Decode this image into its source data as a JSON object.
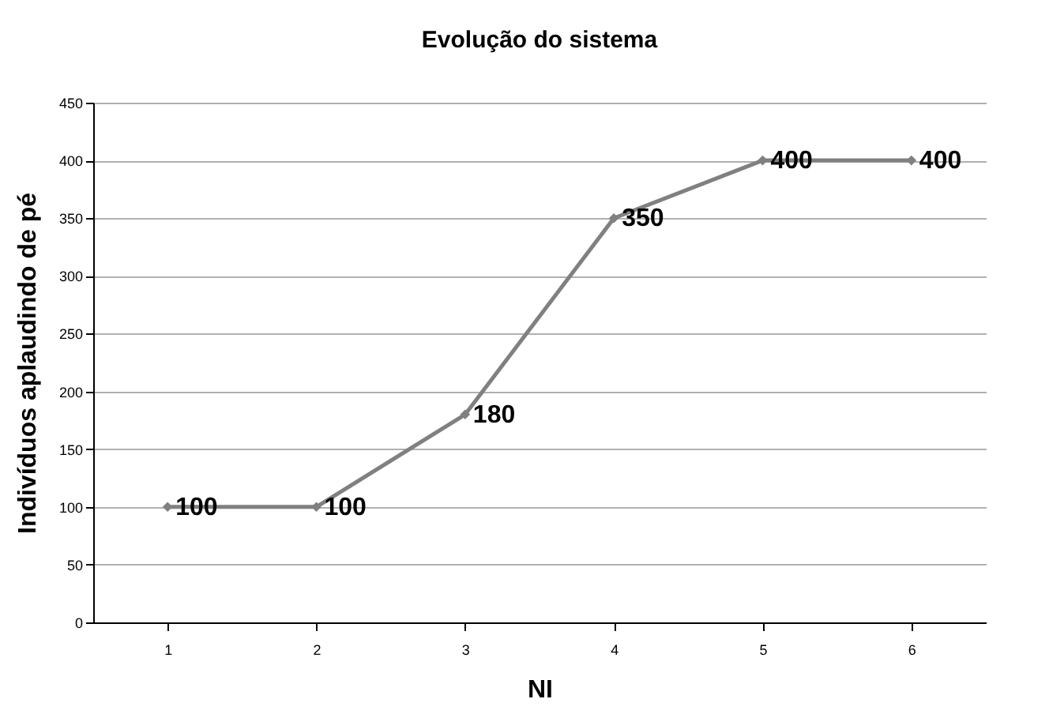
{
  "chart_data": {
    "type": "line",
    "title": "Evolução do sistema",
    "xlabel": "NI",
    "ylabel": "Indivíduos aplaudindo de pé",
    "categories": [
      "1",
      "2",
      "3",
      "4",
      "5",
      "6"
    ],
    "series": [
      {
        "color": "#808080",
        "values": [
          100,
          100,
          180,
          350,
          400,
          400
        ]
      }
    ],
    "ylim": [
      0,
      450
    ],
    "yticks": [
      0,
      50,
      100,
      150,
      200,
      250,
      300,
      350,
      400,
      450
    ],
    "grid": "y",
    "marker": "diamond",
    "line_style": "solid",
    "data_labels": true
  }
}
